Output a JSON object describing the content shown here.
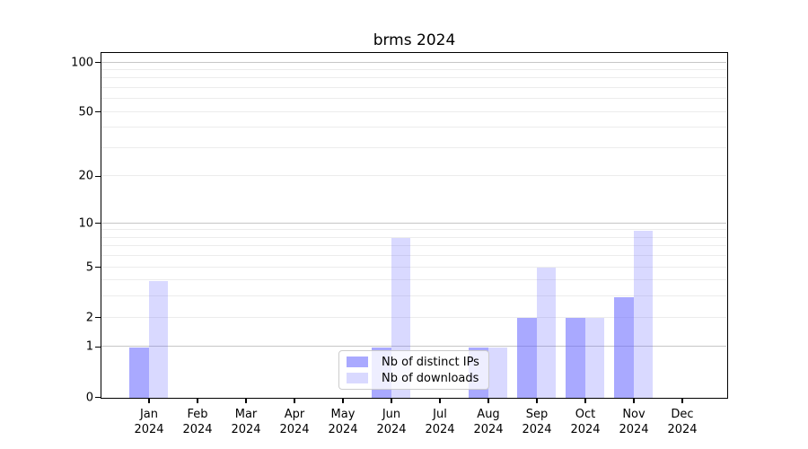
{
  "chart_data": {
    "type": "bar",
    "title": "brms 2024",
    "categories": [
      "Jan",
      "Feb",
      "Mar",
      "Apr",
      "May",
      "Jun",
      "Jul",
      "Aug",
      "Sep",
      "Oct",
      "Nov",
      "Dec"
    ],
    "category_year": "2024",
    "series": [
      {
        "name": "Nb of distinct IPs",
        "color": "rgba(102,102,255,0.56)",
        "values": [
          1,
          0,
          0,
          0,
          0,
          1,
          0,
          1,
          2,
          2,
          3,
          0
        ]
      },
      {
        "name": "Nb of downloads",
        "color": "rgba(102,102,255,0.25)",
        "values": [
          4,
          0,
          0,
          0,
          0,
          8,
          0,
          1,
          5,
          2,
          9,
          0
        ]
      }
    ],
    "y_axis": {
      "scale": "log1p",
      "tick_values": [
        0,
        1,
        2,
        5,
        10,
        20,
        50,
        100
      ],
      "tick_labels": [
        "0",
        "1",
        "2",
        "5",
        "10",
        "20",
        "50",
        "100"
      ],
      "major_gridlines": [
        1,
        10,
        100
      ],
      "minor_gridlines": [
        2,
        3,
        4,
        5,
        6,
        7,
        8,
        9,
        20,
        30,
        40,
        50,
        60,
        70,
        80,
        90
      ],
      "ylim": [
        0,
        115
      ]
    },
    "legend": {
      "position": "lower-center",
      "entries": [
        "Nb of distinct IPs",
        "Nb of downloads"
      ]
    },
    "colors": {
      "grid_major": "#c6c6c6",
      "grid_minor": "#ececec",
      "spine": "#000000",
      "text": "#000000",
      "legend_border": "#cccccc",
      "legend_bg": "rgba(255,255,255,0.8)"
    },
    "grid": true
  }
}
